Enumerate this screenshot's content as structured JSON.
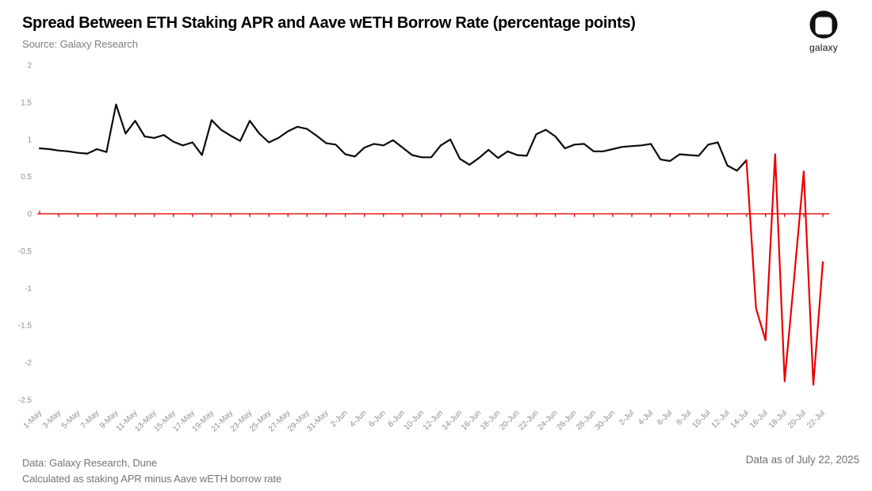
{
  "header": {
    "title": "Spread Between ETH Staking APR and Aave wETH Borrow Rate (percentage points)",
    "source": "Source: Galaxy Research"
  },
  "logo": {
    "label": "galaxy"
  },
  "footer": {
    "data_note": "Data: Galaxy Research, Dune",
    "method_note": "Calculated as staking APR minus Aave wETH borrow rate",
    "as_of": "Data as of July 22, 2025"
  },
  "chart_data": {
    "type": "line",
    "title": "Spread Between ETH Staking APR and Aave wETH Borrow Rate (percentage points)",
    "xlabel": "",
    "ylabel": "",
    "ylim": [
      -2.5,
      2
    ],
    "yticks": [
      2,
      1.5,
      1,
      0.5,
      0,
      -0.5,
      -1,
      -1.5,
      -2,
      -2.5
    ],
    "grid": false,
    "legend": "none",
    "axis_label_color": "#8e8e8e",
    "zero_axis": {
      "color": "#e90000",
      "tick_every_points": 2,
      "tick_length": 4
    },
    "line_style": {
      "positive_color": "#0b0b0b",
      "negative_color": "#e90000",
      "width": 2.2,
      "color_switch_note": "line drawn black from 1-May through 14-Jul, red from 14-Jul to 22-Jul"
    },
    "red_from_index": 74,
    "xtick_label_every": 2,
    "x": [
      "1-May",
      "2-May",
      "3-May",
      "4-May",
      "5-May",
      "6-May",
      "7-May",
      "8-May",
      "9-May",
      "10-May",
      "11-May",
      "12-May",
      "13-May",
      "14-May",
      "15-May",
      "16-May",
      "17-May",
      "18-May",
      "19-May",
      "20-May",
      "21-May",
      "22-May",
      "23-May",
      "24-May",
      "25-May",
      "26-May",
      "27-May",
      "28-May",
      "29-May",
      "30-May",
      "31-May",
      "1-Jun",
      "2-Jun",
      "3-Jun",
      "4-Jun",
      "5-Jun",
      "6-Jun",
      "7-Jun",
      "8-Jun",
      "9-Jun",
      "10-Jun",
      "11-Jun",
      "12-Jun",
      "13-Jun",
      "14-Jun",
      "15-Jun",
      "16-Jun",
      "17-Jun",
      "18-Jun",
      "19-Jun",
      "20-Jun",
      "21-Jun",
      "22-Jun",
      "23-Jun",
      "24-Jun",
      "25-Jun",
      "26-Jun",
      "27-Jun",
      "28-Jun",
      "29-Jun",
      "30-Jun",
      "1-Jul",
      "2-Jul",
      "3-Jul",
      "4-Jul",
      "5-Jul",
      "6-Jul",
      "7-Jul",
      "8-Jul",
      "9-Jul",
      "10-Jul",
      "11-Jul",
      "12-Jul",
      "13-Jul",
      "14-Jul",
      "15-Jul",
      "16-Jul",
      "17-Jul",
      "18-Jul",
      "19-Jul",
      "20-Jul",
      "21-Jul",
      "22-Jul"
    ],
    "series": [
      {
        "name": "Spread (percentage points)",
        "values": [
          0.88,
          0.87,
          0.85,
          0.84,
          0.82,
          0.81,
          0.87,
          0.83,
          1.47,
          1.08,
          1.25,
          1.04,
          1.02,
          1.06,
          0.97,
          0.92,
          0.96,
          0.79,
          1.26,
          1.13,
          1.05,
          0.98,
          1.25,
          1.08,
          0.96,
          1.02,
          1.11,
          1.17,
          1.14,
          1.05,
          0.95,
          0.93,
          0.8,
          0.77,
          0.89,
          0.94,
          0.92,
          0.99,
          0.89,
          0.79,
          0.76,
          0.76,
          0.92,
          1.0,
          0.74,
          0.66,
          0.75,
          0.86,
          0.75,
          0.84,
          0.79,
          0.78,
          1.07,
          1.13,
          1.04,
          0.88,
          0.93,
          0.94,
          0.84,
          0.84,
          0.87,
          0.9,
          0.91,
          0.92,
          0.94,
          0.73,
          0.71,
          0.8,
          0.79,
          0.78,
          0.93,
          0.96,
          0.65,
          0.58,
          0.72,
          -1.27,
          -1.7,
          0.8,
          -2.25,
          -0.85,
          0.57,
          -2.3,
          -0.65
        ]
      }
    ]
  }
}
